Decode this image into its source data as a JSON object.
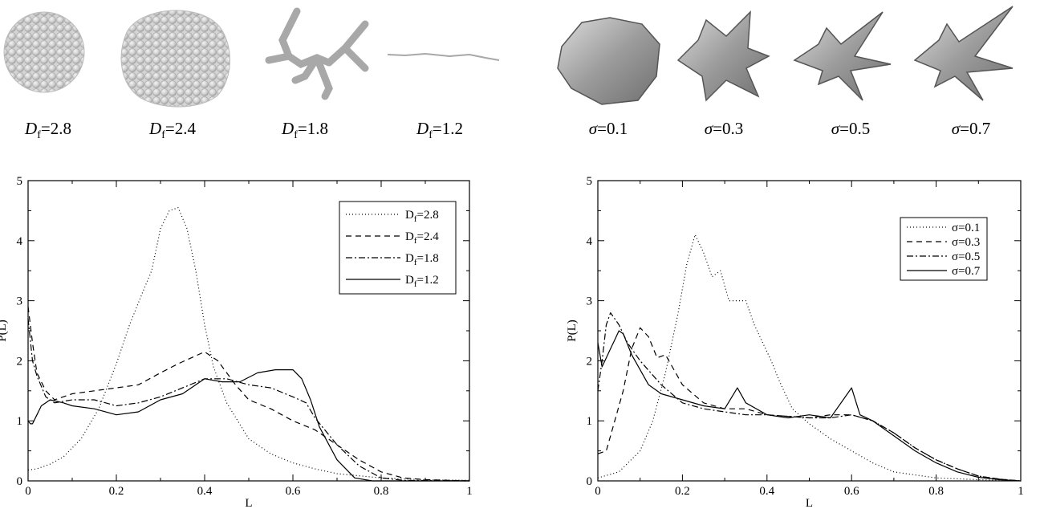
{
  "thumbnails_left": [
    {
      "symbol": "D",
      "sub": "f",
      "eq": "=",
      "value": "2.8"
    },
    {
      "symbol": "D",
      "sub": "f",
      "eq": "=",
      "value": "2.4"
    },
    {
      "symbol": "D",
      "sub": "f",
      "eq": "=",
      "value": "1.8"
    },
    {
      "symbol": "D",
      "sub": "f",
      "eq": "=",
      "value": "1.2"
    }
  ],
  "thumbnails_right": [
    {
      "symbol": "σ",
      "eq": "=",
      "value": "0.1"
    },
    {
      "symbol": "σ",
      "eq": "=",
      "value": "0.3"
    },
    {
      "symbol": "σ",
      "eq": "=",
      "value": "0.5"
    },
    {
      "symbol": "σ",
      "eq": "=",
      "value": "0.7"
    }
  ],
  "chart_data": [
    {
      "type": "line",
      "xlabel": "L",
      "ylabel": "P(L)",
      "xlim": [
        0,
        1
      ],
      "ylim": [
        0,
        5
      ],
      "xticks": [
        "0",
        "0.2",
        "0.4",
        "0.6",
        "0.8",
        "1"
      ],
      "yticks": [
        "0",
        "1",
        "2",
        "3",
        "4",
        "5"
      ],
      "legend_position": "top-right",
      "series": [
        {
          "name": "Df=2.8",
          "name_main": "D",
          "name_sub": "f",
          "name_rest": "=2.8",
          "dash": "1,3",
          "x": [
            0,
            0.02,
            0.05,
            0.08,
            0.12,
            0.16,
            0.2,
            0.23,
            0.26,
            0.28,
            0.3,
            0.32,
            0.34,
            0.36,
            0.38,
            0.4,
            0.42,
            0.45,
            0.5,
            0.55,
            0.6,
            0.65,
            0.7,
            0.8,
            0.9,
            1.0
          ],
          "y": [
            0.18,
            0.2,
            0.28,
            0.4,
            0.7,
            1.2,
            1.95,
            2.6,
            3.15,
            3.5,
            4.2,
            4.5,
            4.55,
            4.2,
            3.5,
            2.6,
            1.9,
            1.3,
            0.7,
            0.45,
            0.3,
            0.2,
            0.12,
            0.05,
            0.02,
            0.01
          ]
        },
        {
          "name": "Df=2.4",
          "name_main": "D",
          "name_sub": "f",
          "name_rest": "=2.4",
          "dash": "7,5",
          "x": [
            0,
            0.01,
            0.02,
            0.04,
            0.06,
            0.1,
            0.15,
            0.2,
            0.25,
            0.3,
            0.34,
            0.37,
            0.4,
            0.43,
            0.47,
            0.5,
            0.55,
            0.6,
            0.65,
            0.7,
            0.75,
            0.8,
            0.85,
            0.9,
            1.0
          ],
          "y": [
            2.9,
            2.3,
            1.8,
            1.5,
            1.35,
            1.45,
            1.5,
            1.55,
            1.6,
            1.8,
            1.95,
            2.05,
            2.15,
            2.0,
            1.6,
            1.35,
            1.2,
            1.0,
            0.85,
            0.6,
            0.35,
            0.15,
            0.05,
            0.02,
            0.0
          ]
        },
        {
          "name": "Df=1.8",
          "name_main": "D",
          "name_sub": "f",
          "name_rest": "=1.8",
          "dash": "8,3,2,3",
          "x": [
            0,
            0.01,
            0.02,
            0.04,
            0.06,
            0.1,
            0.15,
            0.2,
            0.25,
            0.3,
            0.35,
            0.4,
            0.45,
            0.5,
            0.55,
            0.6,
            0.63,
            0.65,
            0.7,
            0.75,
            0.8,
            0.85,
            1.0
          ],
          "y": [
            2.7,
            2.0,
            1.75,
            1.4,
            1.3,
            1.35,
            1.35,
            1.25,
            1.3,
            1.4,
            1.55,
            1.7,
            1.7,
            1.6,
            1.55,
            1.4,
            1.3,
            1.05,
            0.6,
            0.25,
            0.05,
            0.01,
            0.0
          ]
        },
        {
          "name": "Df=1.2",
          "name_main": "D",
          "name_sub": "f",
          "name_rest": "=1.2",
          "dash": "",
          "x": [
            0,
            0.005,
            0.01,
            0.02,
            0.03,
            0.05,
            0.08,
            0.1,
            0.15,
            0.2,
            0.25,
            0.3,
            0.35,
            0.4,
            0.44,
            0.48,
            0.52,
            0.56,
            0.6,
            0.62,
            0.64,
            0.66,
            0.7,
            0.74,
            0.78,
            1.0
          ],
          "y": [
            1.0,
            0.95,
            0.95,
            1.1,
            1.25,
            1.35,
            1.3,
            1.25,
            1.2,
            1.1,
            1.15,
            1.35,
            1.45,
            1.7,
            1.65,
            1.65,
            1.8,
            1.85,
            1.85,
            1.7,
            1.35,
            0.9,
            0.35,
            0.05,
            0.0,
            0.0
          ]
        }
      ]
    },
    {
      "type": "line",
      "xlabel": "L",
      "ylabel": "P(L)",
      "xlim": [
        0,
        1
      ],
      "ylim": [
        0,
        5
      ],
      "xticks": [
        "0",
        "0.2",
        "0.4",
        "0.6",
        "0.8",
        "1"
      ],
      "yticks": [
        "0",
        "1",
        "2",
        "3",
        "4",
        "5"
      ],
      "legend_position": "top-right",
      "series": [
        {
          "name": "σ=0.1",
          "name_main": "σ",
          "name_sub": "",
          "name_rest": "=0.1",
          "dash": "1,3",
          "x": [
            0,
            0.05,
            0.1,
            0.13,
            0.16,
            0.19,
            0.21,
            0.23,
            0.25,
            0.27,
            0.29,
            0.31,
            0.33,
            0.35,
            0.37,
            0.39,
            0.41,
            0.43,
            0.46,
            0.5,
            0.55,
            0.6,
            0.65,
            0.7,
            0.8,
            0.9,
            1.0
          ],
          "y": [
            0.05,
            0.15,
            0.5,
            1.0,
            1.8,
            2.8,
            3.6,
            4.1,
            3.8,
            3.4,
            3.5,
            3.0,
            3.0,
            3.0,
            2.6,
            2.3,
            2.0,
            1.65,
            1.2,
            0.95,
            0.7,
            0.5,
            0.3,
            0.15,
            0.05,
            0.02,
            0.0
          ]
        },
        {
          "name": "σ=0.3",
          "name_main": "σ",
          "name_sub": "",
          "name_rest": "=0.3",
          "dash": "7,5",
          "x": [
            0,
            0.02,
            0.04,
            0.06,
            0.08,
            0.1,
            0.12,
            0.14,
            0.16,
            0.2,
            0.25,
            0.3,
            0.35,
            0.4,
            0.5,
            0.55,
            0.6,
            0.65,
            0.7,
            0.75,
            0.8,
            0.85,
            0.9,
            0.95,
            1.0
          ],
          "y": [
            0.45,
            0.5,
            1.0,
            1.5,
            2.2,
            2.55,
            2.4,
            2.05,
            2.1,
            1.6,
            1.3,
            1.2,
            1.2,
            1.1,
            1.05,
            1.1,
            1.1,
            1.0,
            0.8,
            0.55,
            0.35,
            0.2,
            0.08,
            0.03,
            0.0
          ]
        },
        {
          "name": "σ=0.5",
          "name_main": "σ",
          "name_sub": "",
          "name_rest": "=0.5",
          "dash": "8,3,2,3",
          "x": [
            0,
            0.01,
            0.02,
            0.03,
            0.05,
            0.07,
            0.1,
            0.15,
            0.2,
            0.25,
            0.3,
            0.35,
            0.4,
            0.5,
            0.55,
            0.6,
            0.65,
            0.7,
            0.75,
            0.8,
            0.85,
            0.9,
            0.95,
            1.0
          ],
          "y": [
            1.5,
            2.0,
            2.6,
            2.8,
            2.6,
            2.3,
            2.0,
            1.6,
            1.3,
            1.2,
            1.15,
            1.1,
            1.1,
            1.05,
            1.05,
            1.1,
            1.0,
            0.8,
            0.55,
            0.35,
            0.2,
            0.08,
            0.03,
            0.0
          ]
        },
        {
          "name": "σ=0.7",
          "name_main": "σ",
          "name_sub": "",
          "name_rest": "=0.7",
          "dash": "",
          "x": [
            0,
            0.01,
            0.02,
            0.03,
            0.04,
            0.05,
            0.06,
            0.08,
            0.1,
            0.12,
            0.15,
            0.2,
            0.25,
            0.3,
            0.33,
            0.35,
            0.4,
            0.45,
            0.5,
            0.55,
            0.6,
            0.62,
            0.65,
            0.7,
            0.75,
            0.8,
            0.85,
            0.9,
            0.95,
            1.0
          ],
          "y": [
            2.3,
            1.9,
            2.05,
            2.2,
            2.35,
            2.5,
            2.45,
            2.1,
            1.85,
            1.6,
            1.45,
            1.35,
            1.25,
            1.2,
            1.55,
            1.3,
            1.1,
            1.05,
            1.1,
            1.05,
            1.55,
            1.1,
            1.0,
            0.75,
            0.5,
            0.3,
            0.15,
            0.06,
            0.02,
            0.0
          ]
        }
      ]
    }
  ]
}
